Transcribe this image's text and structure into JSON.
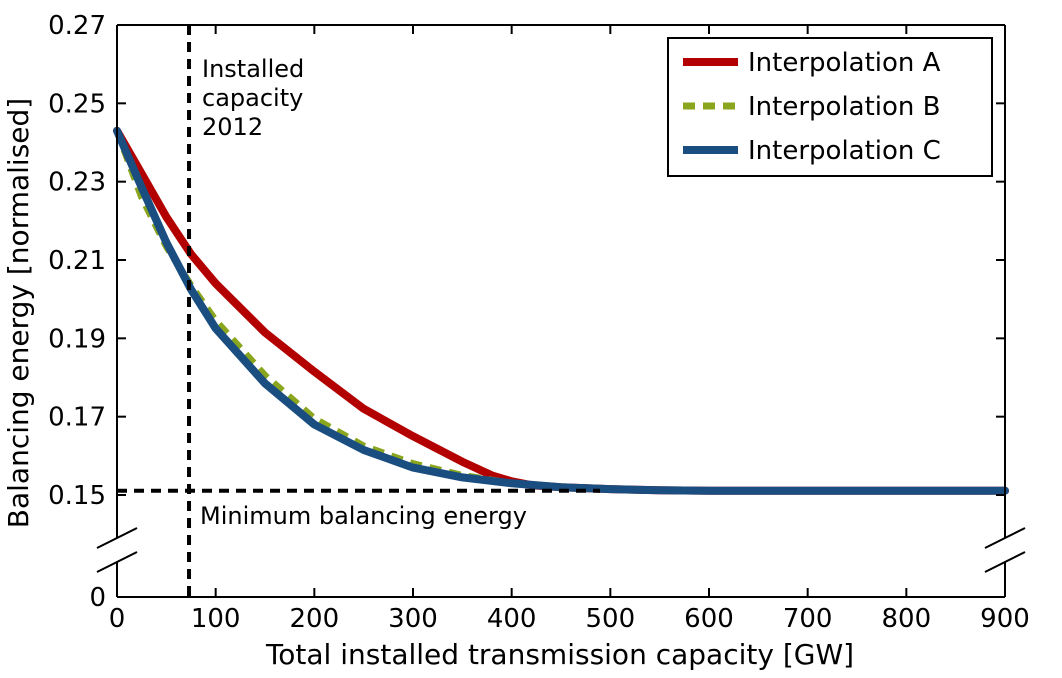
{
  "chart_data": {
    "type": "line",
    "xlabel": "Total installed transmission capacity [GW]",
    "ylabel": "Balancing energy [normalised]",
    "xlim": [
      0,
      900
    ],
    "ylim": [
      0.14,
      0.27
    ],
    "y_axis_break": true,
    "y_break_extra_label": "0",
    "x_ticks": [
      0,
      100,
      200,
      300,
      400,
      500,
      600,
      700,
      800,
      900
    ],
    "x_tick_labels": [
      "0",
      "100",
      "200",
      "300",
      "400",
      "500",
      "600",
      "700",
      "800",
      "900"
    ],
    "y_ticks": [
      0.15,
      0.17,
      0.19,
      0.21,
      0.23,
      0.25,
      0.27
    ],
    "y_tick_labels": [
      "0.15",
      "0.17",
      "0.19",
      "0.21",
      "0.23",
      "0.25",
      "0.27"
    ],
    "grid": false,
    "legend_position": "top-right",
    "series": [
      {
        "name": "Interpolation A",
        "color": "#b30000",
        "style": "solid",
        "x": [
          0,
          25,
          50,
          75,
          100,
          150,
          200,
          250,
          300,
          350,
          380,
          400,
          420,
          450,
          500,
          550,
          600,
          700,
          800,
          900
        ],
        "y": [
          0.243,
          0.232,
          0.221,
          0.2115,
          0.204,
          0.1915,
          0.1815,
          0.172,
          0.165,
          0.1585,
          0.155,
          0.1535,
          0.1525,
          0.152,
          0.1515,
          0.1512,
          0.1511,
          0.1511,
          0.1511,
          0.1511
        ]
      },
      {
        "name": "Interpolation B",
        "color": "#8aa61e",
        "style": "dashed",
        "x": [
          0,
          25,
          50,
          75,
          100,
          150,
          200,
          250,
          300,
          350,
          400,
          450,
          500,
          550,
          600,
          700,
          800,
          900
        ],
        "y": [
          0.243,
          0.226,
          0.2135,
          0.2035,
          0.1945,
          0.1805,
          0.1695,
          0.1625,
          0.158,
          0.155,
          0.153,
          0.152,
          0.1515,
          0.1512,
          0.1511,
          0.1511,
          0.1511,
          0.1511
        ]
      },
      {
        "name": "Interpolation C",
        "color": "#1a4e80",
        "style": "solid",
        "x": [
          0,
          25,
          50,
          75,
          100,
          150,
          200,
          250,
          300,
          350,
          400,
          450,
          500,
          550,
          600,
          700,
          800,
          900
        ],
        "y": [
          0.243,
          0.2285,
          0.2145,
          0.2025,
          0.1925,
          0.1785,
          0.168,
          0.1615,
          0.157,
          0.1545,
          0.153,
          0.152,
          0.1515,
          0.1512,
          0.1511,
          0.1511,
          0.1511,
          0.1511
        ]
      }
    ],
    "reference_lines": [
      {
        "orientation": "vertical",
        "x": 73,
        "label_lines": [
          "Installed",
          "capacity",
          "2012"
        ]
      },
      {
        "orientation": "horizontal",
        "y": 0.1511,
        "label": "Minimum balancing energy"
      }
    ]
  }
}
